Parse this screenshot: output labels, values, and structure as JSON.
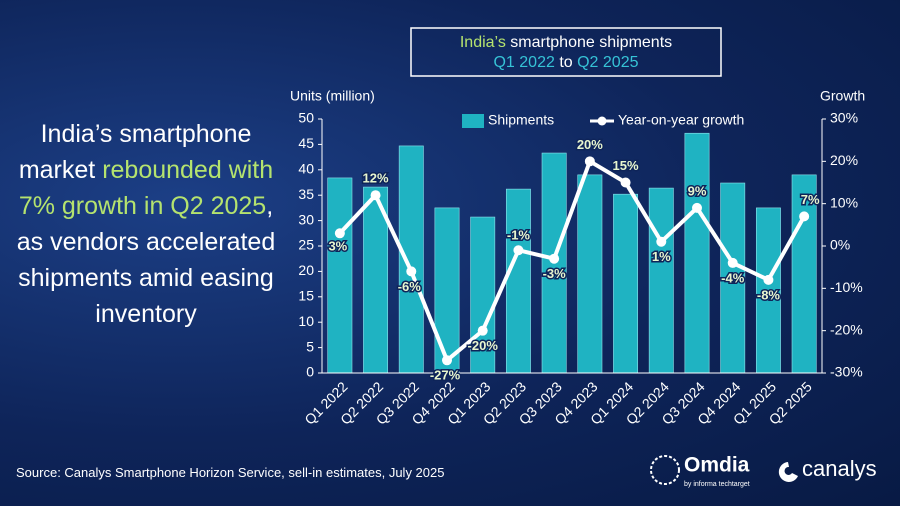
{
  "headline": [
    {
      "text": "India’s smartphone market ",
      "color": "#ffffff"
    },
    {
      "text": "rebounded with 7% growth in Q2 2025",
      "color": "#b5e36e"
    },
    {
      "text": ", as vendors accelerated shipments amid easing inventory",
      "color": "#ffffff"
    }
  ],
  "chart_data": {
    "type": "bar-line",
    "title_parts": [
      {
        "text": "India’s",
        "color": "#b5e36e"
      },
      {
        "text": " smartphone shipments",
        "color": "#ffffff"
      },
      {
        "text": "Q1 2022",
        "color": "#36c3d6"
      },
      {
        "text": " to ",
        "color": "#ffffff"
      },
      {
        "text": "Q2 2025",
        "color": "#36c3d6"
      }
    ],
    "ylabel": "Units (million)",
    "y2label": "Growth",
    "categories": [
      "Q1 2022",
      "Q2 2022",
      "Q3 2022",
      "Q4 2022",
      "Q1 2023",
      "Q2 2023",
      "Q3 2023",
      "Q4 2023",
      "Q1 2024",
      "Q2 2024",
      "Q3 2024",
      "Q4 2024",
      "Q1 2025",
      "Q2 2025"
    ],
    "series": [
      {
        "name": "Shipments",
        "type": "bar",
        "color": "#1fb3c2",
        "values": [
          38.4,
          36.6,
          44.7,
          32.5,
          30.7,
          36.2,
          43.3,
          39.0,
          35.2,
          36.4,
          47.2,
          37.4,
          32.5,
          39.0
        ]
      },
      {
        "name": "Year-on-year growth",
        "type": "line",
        "axis": "y2",
        "color": "#ffffff",
        "values": [
          3,
          12,
          -6,
          -27,
          -20,
          -1,
          -3,
          20,
          15,
          1,
          9,
          -4,
          -8,
          7
        ],
        "value_labels": [
          "3%",
          "12%",
          "-6%",
          "-27%",
          "-20%",
          "-1%",
          "-3%",
          "20%",
          "15%",
          "1%",
          "9%",
          "-4%",
          "-8%",
          "7%"
        ]
      }
    ],
    "ylim": [
      0,
      50
    ],
    "yticks": [
      0,
      5,
      10,
      15,
      20,
      25,
      30,
      35,
      40,
      45,
      50
    ],
    "y2lim": [
      -30,
      30
    ],
    "y2ticks": [
      {
        "value": -30,
        "label": "-30%"
      },
      {
        "value": -20,
        "label": "-20%"
      },
      {
        "value": -10,
        "label": "-10%"
      },
      {
        "value": 0,
        "label": "0%"
      },
      {
        "value": 10,
        "label": "10%"
      },
      {
        "value": 20,
        "label": "20%"
      },
      {
        "value": 30,
        "label": "30%"
      }
    ],
    "grid": false,
    "legend": "top"
  },
  "source": "Source: Canalys Smartphone Horizon Service, sell-in estimates, July 2025",
  "logos": {
    "omdia": "Omdia",
    "omdia_sub": "by informa techtarget",
    "canalys": "canalys"
  }
}
